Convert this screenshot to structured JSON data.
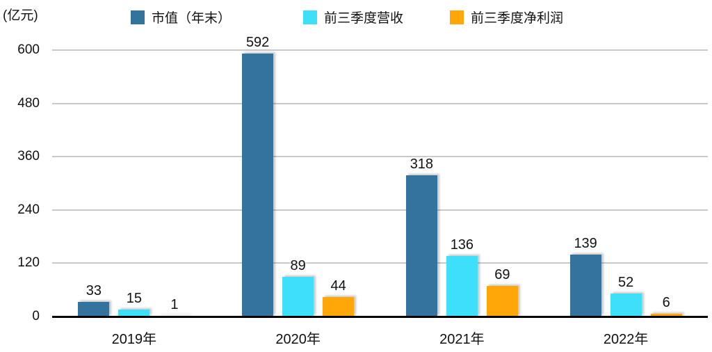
{
  "chart_data": {
    "type": "bar",
    "title": "",
    "ylabel": "(亿元)",
    "categories": [
      "2019年",
      "2020年",
      "2021年",
      "2022年"
    ],
    "series": [
      {
        "key": "market-cap",
        "name": "市值（年末）",
        "color": "#33739E",
        "values": [
          33,
          592,
          318,
          139
        ]
      },
      {
        "key": "revenue",
        "name": "前三季度营收",
        "color": "#3EDFF8",
        "values": [
          15,
          89,
          136,
          52
        ]
      },
      {
        "key": "net-profit",
        "name": "前三季度净利润",
        "color": "#FFA608",
        "values": [
          1,
          44,
          69,
          6
        ]
      }
    ],
    "yticks": [
      0,
      120,
      240,
      360,
      480,
      600
    ],
    "ylim": [
      0,
      600
    ],
    "grid": true,
    "legend_position": "top",
    "style": {
      "grid_color": "#C9C9C9",
      "axis_color": "#000000",
      "text_color": "#111111"
    }
  }
}
